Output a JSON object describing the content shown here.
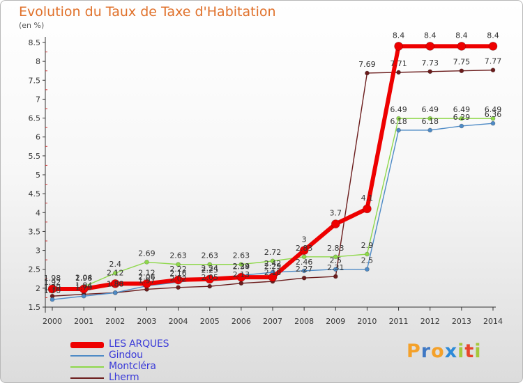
{
  "title": "Evolution du Taux de Taxe d'Habitation",
  "unit_label": "(en %)",
  "logo": {
    "letters": [
      "P",
      "r",
      "o",
      "x",
      "i",
      "t",
      "i"
    ],
    "colors": [
      "#f4a12a",
      "#3f78c4",
      "#f4a12a",
      "#2d8ad8",
      "#a6c83c",
      "#e8452c",
      "#a6c83c"
    ]
  },
  "chart_data": {
    "type": "line",
    "x": [
      "2000",
      "2001",
      "2002",
      "2003",
      "2004",
      "2005",
      "2006",
      "2007",
      "2008",
      "2009",
      "2010",
      "2011",
      "2012",
      "2013",
      "2014"
    ],
    "ylim": [
      1.5,
      8.5
    ],
    "yticks": [
      "1.5",
      "2",
      "2.5",
      "3",
      "3.5",
      "4",
      "4.5",
      "5",
      "5.5",
      "6",
      "6.5",
      "7",
      "7.5",
      "8",
      "8.5"
    ],
    "grid": false,
    "legend_position": "bottom-left",
    "series": [
      {
        "name": "Lherm",
        "color": "#6b1c1c",
        "width": 1.4,
        "radius": 3,
        "values": [
          1.79,
          1.84,
          1.88,
          1.97,
          2.02,
          2.05,
          2.13,
          2.18,
          2.27,
          2.31,
          7.69,
          7.71,
          7.73,
          7.75,
          7.77
        ],
        "labels": [
          "1.79",
          "1.84",
          "1.88",
          "1.97",
          "2.02",
          "2.05",
          "2.13",
          "2.18",
          "2.27",
          "2.31",
          "7.69",
          "7.71",
          "7.73",
          "7.75",
          "7.77"
        ]
      },
      {
        "name": "Gindou",
        "color": "#4f8bc6",
        "width": 1.4,
        "radius": 3,
        "values": [
          1.7,
          1.79,
          1.88,
          2.06,
          2.16,
          2.25,
          2.34,
          2.42,
          2.46,
          2.5,
          2.5,
          6.18,
          6.18,
          6.29,
          6.36
        ],
        "labels": [
          "1.70",
          "1.79",
          "1.88",
          "2.06",
          "2.16",
          "2.25",
          "2.34",
          "2.42",
          "2.46",
          "2.5",
          "2.5",
          "6.18",
          "6.18",
          "6.29",
          "6.36"
        ]
      },
      {
        "name": "Montcléra",
        "color": "#8ed84a",
        "width": 1.4,
        "radius": 3,
        "values": [
          1.92,
          2.04,
          2.4,
          2.69,
          2.63,
          2.63,
          2.63,
          2.72,
          2.83,
          2.83,
          2.9,
          6.49,
          6.49,
          6.49,
          6.49
        ],
        "labels": [
          "1.92",
          "2.04",
          "2.4",
          "2.69",
          "2.63",
          "2.63",
          "2.63",
          "2.72",
          "2.83",
          "2.83",
          "2.9",
          "6.49",
          "6.49",
          "6.49",
          "6.49"
        ]
      },
      {
        "name": "LES ARQUES",
        "color": "#ee0000",
        "width": 6,
        "radius": 6,
        "values": [
          1.98,
          1.98,
          2.12,
          2.12,
          2.22,
          2.24,
          2.29,
          2.29,
          3,
          3.7,
          4.1,
          8.4,
          8.4,
          8.4,
          8.4
        ],
        "labels": [
          "1.98",
          "1.98",
          "2.12",
          "2.12",
          "2.22",
          "2.24",
          "2.29",
          "2.29",
          "3",
          "3.7",
          "4.1",
          "8.4",
          "8.4",
          "8.4",
          "8.4"
        ]
      }
    ]
  },
  "legend": [
    {
      "name": "LES ARQUES",
      "color": "#ee0000",
      "thickness": 9
    },
    {
      "name": "Gindou",
      "color": "#4f8bc6",
      "thickness": 2
    },
    {
      "name": "Montcléra",
      "color": "#8ed84a",
      "thickness": 2
    },
    {
      "name": "Lherm",
      "color": "#6b1c1c",
      "thickness": 2
    }
  ]
}
